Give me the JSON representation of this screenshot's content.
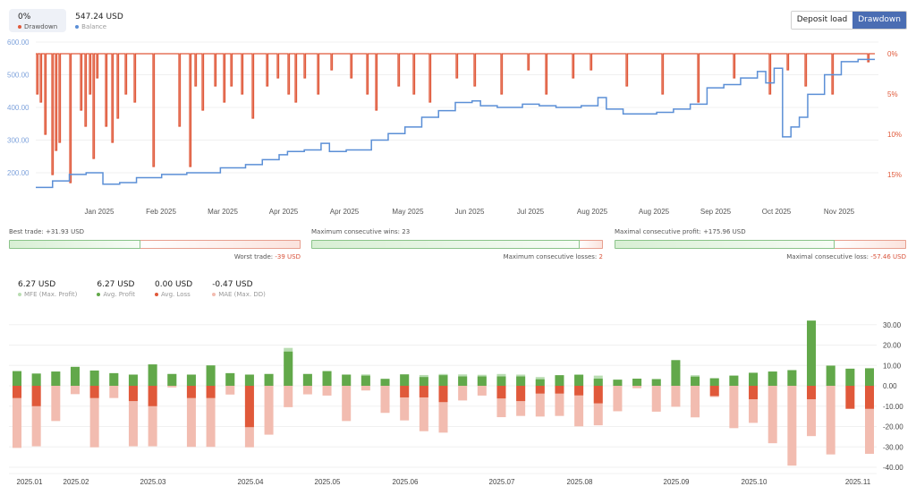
{
  "header": {
    "drawdown": {
      "value": "0%",
      "label": "Drawdown",
      "color": "#e0593a"
    },
    "balance": {
      "value": "547.24 USD",
      "label": "Balance",
      "color": "#5b8fd6"
    },
    "toggle": {
      "deposit_load": "Deposit load",
      "drawdown": "Drawdown",
      "selected": "Drawdown"
    }
  },
  "colors": {
    "balance": "#5b8fd6",
    "drawdown": "#e0593a",
    "mfe": "#b9ddb2",
    "profit": "#62a84a",
    "loss": "#e0593a",
    "mae": "#f2bcb0",
    "accent": "#4a6db3"
  },
  "stats": {
    "best_trade": {
      "label": "Best trade:",
      "value": "+31.93 USD"
    },
    "worst_trade": {
      "label": "Worst trade:",
      "value": "-39 USD"
    },
    "max_consec_wins": {
      "label": "Maximum consecutive wins:",
      "value": "23"
    },
    "max_consec_losses": {
      "label": "Maximum consecutive losses:",
      "value": "2"
    },
    "max_consec_profit": {
      "label": "Maximal consecutive profit:",
      "value": "+175.96 USD"
    },
    "max_consec_loss": {
      "label": "Maximal consecutive loss:",
      "value": "-57.46 USD"
    }
  },
  "summary": [
    {
      "value": "6.27 USD",
      "label": "MFE (Max. Profit)",
      "color": "#b9ddb2"
    },
    {
      "value": "6.27 USD",
      "label": "Avg. Profit",
      "color": "#62a84a"
    },
    {
      "value": "0.00 USD",
      "label": "Avg. Loss",
      "color": "#e0593a"
    },
    {
      "value": "-0.47 USD",
      "label": "MAE (Max. DD)",
      "color": "#f2bcb0"
    }
  ],
  "chart_data": [
    {
      "type": "line",
      "title": "Balance & Drawdown",
      "x_tick_labels": [
        "Jan 2025",
        "Feb 2025",
        "Mar 2025",
        "Apr 2025",
        "Apr 2025",
        "May 2025",
        "Jun 2025",
        "Jul 2025",
        "Aug 2025",
        "Aug 2025",
        "Sep 2025",
        "Oct 2025",
        "Nov 2025"
      ],
      "y_left_ticks": [
        "600.00",
        "500.00",
        "400.00",
        "300.00",
        "200.00"
      ],
      "y_left_range": [
        150,
        600
      ],
      "y_right_ticks": [
        "0%",
        "5%",
        "10%",
        "15%"
      ],
      "y_right_range": [
        0,
        17
      ],
      "grid": true,
      "series": [
        {
          "name": "Balance",
          "color": "#5b8fd6",
          "approx_points": [
            [
              0,
              155
            ],
            [
              0.02,
              175
            ],
            [
              0.04,
              195
            ],
            [
              0.06,
              200
            ],
            [
              0.08,
              165
            ],
            [
              0.1,
              170
            ],
            [
              0.12,
              185
            ],
            [
              0.15,
              195
            ],
            [
              0.18,
              200
            ],
            [
              0.2,
              200
            ],
            [
              0.22,
              215
            ],
            [
              0.25,
              225
            ],
            [
              0.27,
              240
            ],
            [
              0.29,
              255
            ],
            [
              0.3,
              265
            ],
            [
              0.32,
              270
            ],
            [
              0.34,
              290
            ],
            [
              0.35,
              265
            ],
            [
              0.37,
              270
            ],
            [
              0.4,
              300
            ],
            [
              0.42,
              320
            ],
            [
              0.44,
              340
            ],
            [
              0.46,
              370
            ],
            [
              0.48,
              390
            ],
            [
              0.5,
              415
            ],
            [
              0.52,
              420
            ],
            [
              0.53,
              405
            ],
            [
              0.55,
              400
            ],
            [
              0.58,
              410
            ],
            [
              0.6,
              405
            ],
            [
              0.62,
              400
            ],
            [
              0.65,
              405
            ],
            [
              0.67,
              430
            ],
            [
              0.68,
              395
            ],
            [
              0.7,
              380
            ],
            [
              0.72,
              380
            ],
            [
              0.74,
              385
            ],
            [
              0.76,
              395
            ],
            [
              0.78,
              410
            ],
            [
              0.8,
              460
            ],
            [
              0.82,
              470
            ],
            [
              0.84,
              490
            ],
            [
              0.86,
              510
            ],
            [
              0.87,
              475
            ],
            [
              0.88,
              520
            ],
            [
              0.89,
              310
            ],
            [
              0.9,
              340
            ],
            [
              0.91,
              370
            ],
            [
              0.92,
              440
            ],
            [
              0.94,
              500
            ],
            [
              0.96,
              540
            ],
            [
              0.98,
              547
            ]
          ]
        },
        {
          "name": "Drawdown",
          "color": "#e0593a",
          "baseline_pct": 0,
          "max_pct": 16.5,
          "spikes_pct": [
            5,
            6,
            10,
            15,
            12,
            11,
            16,
            7,
            9,
            5,
            13,
            3,
            9,
            11,
            8,
            5,
            6,
            14,
            9,
            14,
            4,
            7,
            4,
            6,
            4,
            5,
            8,
            4,
            3,
            5,
            6,
            3,
            5,
            2,
            3,
            5,
            7,
            4,
            5,
            6,
            3,
            4,
            5,
            2,
            5,
            3,
            2,
            4,
            5,
            6,
            3,
            5,
            2,
            4,
            5,
            1
          ]
        }
      ]
    },
    {
      "type": "bar",
      "title": "Trade Distribution (MFE / Profit / Loss / MAE)",
      "x_tick_labels": [
        "2025.01",
        "2025.02",
        "2025.03",
        "2025.04",
        "2025.05",
        "2025.06",
        "2025.07",
        "2025.08",
        "2025.09",
        "2025.10",
        "2025.11"
      ],
      "y_ticks": [
        "30.00",
        "20.00",
        "10.00",
        "0.00",
        "-10.00",
        "-20.00",
        "-30.00",
        "-40.00"
      ],
      "ylim": [
        -40,
        33
      ],
      "grid": true,
      "series": [
        {
          "name": "MFE (Max. Profit)",
          "color": "#b9ddb2",
          "values": [
            7.2,
            6.0,
            7.0,
            9.3,
            7.5,
            6.2,
            5.5,
            10.5,
            5.8,
            5.5,
            10.0,
            6.2,
            5.5,
            5.8,
            18.6,
            5.8,
            7.2,
            5.5,
            5.6,
            3.4,
            5.6,
            5.3,
            5.8,
            5.6,
            5.4,
            5.8,
            5.5,
            4.3,
            5.2,
            5.7,
            5.0,
            3.0,
            3.5,
            3.3,
            12.6,
            5.2,
            3.7,
            5.0,
            6.4,
            7.0,
            7.7,
            32.0,
            9.9,
            8.4,
            8.6
          ]
        },
        {
          "name": "Profit",
          "color": "#62a84a",
          "values": [
            7.2,
            6.0,
            7.0,
            9.3,
            7.5,
            6.2,
            5.5,
            10.5,
            5.8,
            5.5,
            10.0,
            6.2,
            5.5,
            5.8,
            16.8,
            5.8,
            7.2,
            5.5,
            5.0,
            3.4,
            5.6,
            4.3,
            5.2,
            4.6,
            4.6,
            4.6,
            4.6,
            3.2,
            5.2,
            5.3,
            3.5,
            3.0,
            3.5,
            3.3,
            12.6,
            4.5,
            3.7,
            5.0,
            6.4,
            7.0,
            7.7,
            32.0,
            9.9,
            8.4,
            8.6
          ]
        },
        {
          "name": "Loss",
          "color": "#e0593a",
          "values": [
            -6.0,
            -10.0,
            0,
            0,
            -6.0,
            0,
            -7.5,
            -10.0,
            0,
            -6.0,
            -6.0,
            0,
            -20.3,
            0,
            0,
            0,
            0,
            0,
            0,
            0,
            -5.7,
            -5.7,
            -8.0,
            0,
            0,
            -6.2,
            -7.5,
            -3.8,
            -3.8,
            -4.7,
            -8.6,
            0,
            0,
            0,
            0,
            0,
            -5.0,
            0,
            -6.6,
            0,
            0,
            -6.6,
            0,
            -11.3,
            -11.3
          ]
        },
        {
          "name": "MAE (Max. DD)",
          "color": "#f2bcb0",
          "values": [
            -30.5,
            -29.7,
            -17.3,
            -4.1,
            -30.2,
            -6.0,
            -29.7,
            -29.7,
            -0.8,
            -30.0,
            -30.0,
            -4.3,
            -30.2,
            -24.0,
            -10.5,
            -4.2,
            -4.8,
            -17.3,
            -2.3,
            -13.3,
            -17.0,
            -22.3,
            -23.0,
            -7.2,
            -4.8,
            -15.4,
            -14.8,
            -15.1,
            -14.8,
            -19.9,
            -19.4,
            -12.5,
            -1.2,
            -12.7,
            -10.3,
            -15.5,
            -5.5,
            -20.8,
            -18.2,
            -28.2,
            -39.2,
            -24.7,
            -33.7,
            -2.3,
            -33.4
          ]
        }
      ]
    }
  ]
}
